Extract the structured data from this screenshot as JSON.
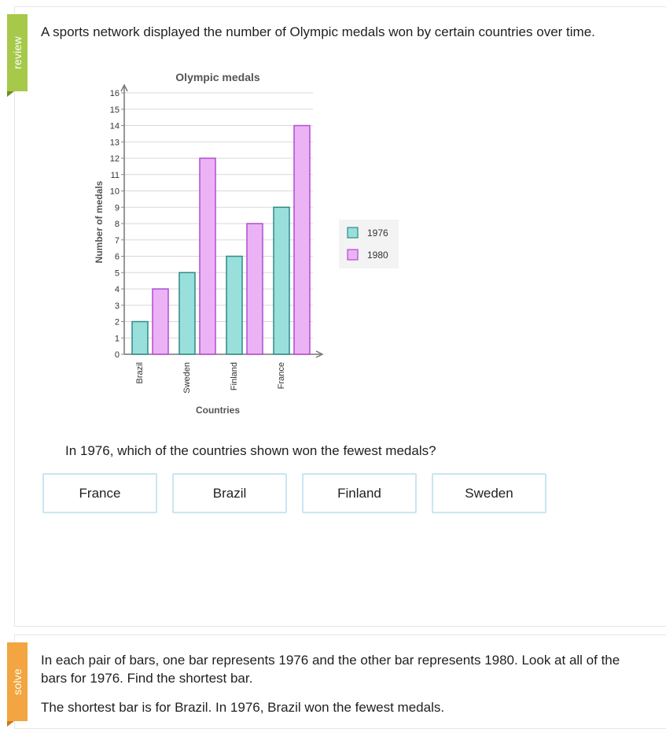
{
  "tabs": {
    "review": "review",
    "solve": "solve"
  },
  "prompt": "A sports network displayed the number of Olympic medals won by certain countries over time.",
  "question": "In 1976, which of the countries shown won the fewest medals?",
  "choices": [
    "France",
    "Brazil",
    "Finland",
    "Sweden"
  ],
  "solve": {
    "line1": "In each pair of bars, one bar represents 1976 and the other bar represents 1980. Look at all of the bars for 1976. Find the shortest bar.",
    "line2": "The shortest bar is for Brazil. In 1976, Brazil won the fewest medals."
  },
  "colors": {
    "series1976_fill": "#99dfdc",
    "series1976_stroke": "#2e8c86",
    "series1980_fill": "#ebb3f5",
    "series1980_stroke": "#b24ccf",
    "review": "#a6c94a",
    "solve": "#f2a540"
  },
  "chart_data": {
    "type": "bar",
    "title": "Olympic medals",
    "xlabel": "Countries",
    "ylabel": "Number of medals",
    "categories": [
      "Brazil",
      "Sweden",
      "Finland",
      "France"
    ],
    "series": [
      {
        "name": "1976",
        "values": [
          2,
          5,
          6,
          9
        ]
      },
      {
        "name": "1980",
        "values": [
          4,
          12,
          8,
          14
        ]
      }
    ],
    "ylim": [
      0,
      16
    ],
    "yticks": [
      "0",
      "1",
      "2",
      "3",
      "4",
      "5",
      "6",
      "7",
      "8",
      "9",
      "10",
      "11",
      "12",
      "13",
      "14",
      "15",
      "16"
    ],
    "grid": true,
    "legend_position": "right"
  }
}
